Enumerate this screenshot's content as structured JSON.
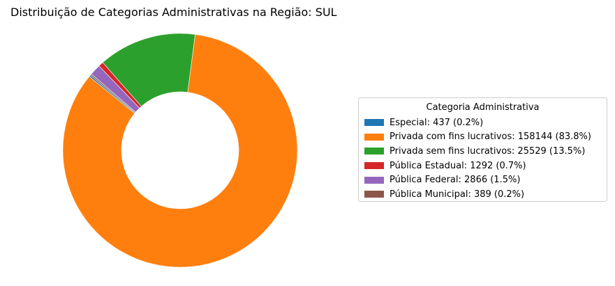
{
  "chart_data": {
    "type": "pie",
    "title": "Distribuição de Categorias Administrativas na Região: SUL",
    "donut": true,
    "legend_title": "Categoria Administrativa",
    "legend_position": "right",
    "slices": [
      {
        "label": "Especial: 437 (0.2%)",
        "value": 437,
        "color": "#1f77b4"
      },
      {
        "label": "Privada com fins lucrativos: 158144 (83.8%)",
        "value": 158144,
        "color": "#ff7f0e"
      },
      {
        "label": "Privada sem fins lucrativos: 25529 (13.5%)",
        "value": 25529,
        "color": "#2ca02c"
      },
      {
        "label": "Pública Estadual: 1292 (0.7%)",
        "value": 1292,
        "color": "#d62728"
      },
      {
        "label": "Pública Federal: 2866 (1.5%)",
        "value": 2866,
        "color": "#9467bd"
      },
      {
        "label": "Pública Municipal: 389 (0.2%)",
        "value": 389,
        "color": "#8c564b"
      }
    ]
  }
}
